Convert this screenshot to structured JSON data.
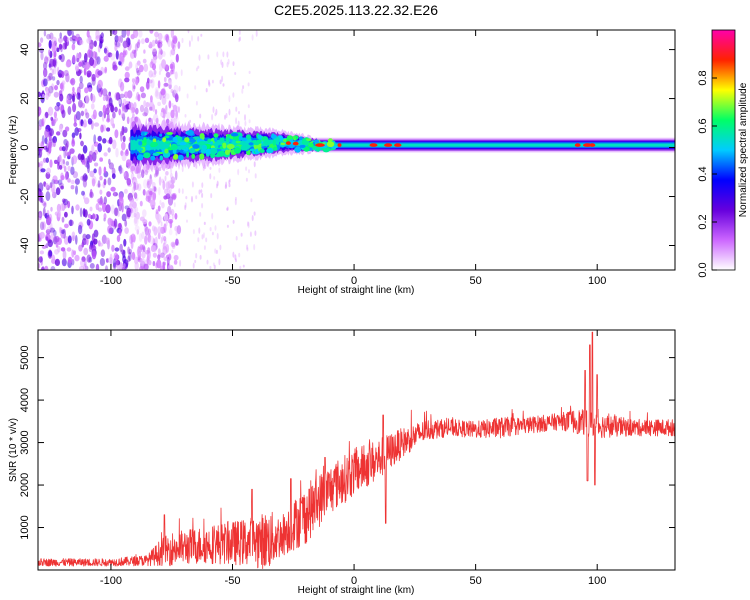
{
  "title": "C2E5.2025.113.22.32.E26",
  "chart_data": [
    {
      "type": "heatmap",
      "xlabel": "Height of straight line (km)",
      "ylabel": "Frequency (Hz)",
      "xlim": [
        -130,
        132
      ],
      "ylim": [
        -50,
        48
      ],
      "xticks": [
        -100,
        -50,
        0,
        50,
        100
      ],
      "yticks": [
        -40,
        -20,
        0,
        20,
        40
      ],
      "colorbar": {
        "label": "Normalized spectral amplitude",
        "range": [
          0,
          1
        ],
        "ticks": [
          "0.0",
          "0.2",
          "0.4",
          "0.6",
          "0.8"
        ],
        "colors": [
          "#ffffff",
          "#cc66ff",
          "#6600dd",
          "#0000ff",
          "#00ccff",
          "#00ff66",
          "#ffff00",
          "#ff2200",
          "#ff00aa"
        ]
      },
      "band": {
        "center_hz": [
          {
            "x": -90,
            "f": 1
          },
          {
            "x": -60,
            "f": 1
          },
          {
            "x": -30,
            "f": 2
          },
          {
            "x": -15,
            "f": 1
          },
          {
            "x": 0,
            "f": 1
          },
          {
            "x": 30,
            "f": 1
          },
          {
            "x": 60,
            "f": 1
          },
          {
            "x": 100,
            "f": 1
          },
          {
            "x": 132,
            "f": 1
          }
        ],
        "halfwidth_hz": [
          {
            "x": -92,
            "w": 10
          },
          {
            "x": -60,
            "w": 8
          },
          {
            "x": -30,
            "w": 5
          },
          {
            "x": -15,
            "w": 3
          },
          {
            "x": 0,
            "w": 3
          },
          {
            "x": 60,
            "w": 3
          },
          {
            "x": 132,
            "w": 3
          }
        ],
        "noise_region_x": [
          -130,
          -80
        ],
        "hotspots_x": [
          -27,
          -24,
          -14,
          -6,
          8,
          14,
          18,
          92,
          96,
          98
        ]
      }
    },
    {
      "type": "line",
      "xlabel": "Height of straight line (km)",
      "ylabel": "SNR (10 * v/v)",
      "xlim": [
        -130,
        132
      ],
      "ylim": [
        0,
        5650
      ],
      "xticks": [
        -100,
        -50,
        0,
        50,
        100
      ],
      "yticks": [
        1000,
        2000,
        3000,
        4000,
        5000
      ],
      "color": "#ee3333",
      "series": [
        {
          "envelope": [
            {
              "x": -130,
              "mean": 180,
              "amp": 90
            },
            {
              "x": -100,
              "mean": 180,
              "amp": 90
            },
            {
              "x": -85,
              "mean": 230,
              "amp": 130
            },
            {
              "x": -80,
              "mean": 400,
              "amp": 300
            },
            {
              "x": -75,
              "mean": 500,
              "amp": 400
            },
            {
              "x": -60,
              "mean": 600,
              "amp": 450
            },
            {
              "x": -45,
              "mean": 650,
              "amp": 550
            },
            {
              "x": -35,
              "mean": 700,
              "amp": 700
            },
            {
              "x": -30,
              "mean": 800,
              "amp": 500
            },
            {
              "x": -20,
              "mean": 1300,
              "amp": 700
            },
            {
              "x": -10,
              "mean": 1900,
              "amp": 600
            },
            {
              "x": 0,
              "mean": 2300,
              "amp": 550
            },
            {
              "x": 10,
              "mean": 2600,
              "amp": 500
            },
            {
              "x": 20,
              "mean": 3000,
              "amp": 350
            },
            {
              "x": 30,
              "mean": 3300,
              "amp": 250
            },
            {
              "x": 40,
              "mean": 3350,
              "amp": 200
            },
            {
              "x": 50,
              "mean": 3300,
              "amp": 200
            },
            {
              "x": 60,
              "mean": 3350,
              "amp": 250
            },
            {
              "x": 70,
              "mean": 3400,
              "amp": 200
            },
            {
              "x": 85,
              "mean": 3500,
              "amp": 200
            },
            {
              "x": 92,
              "mean": 3500,
              "amp": 300
            },
            {
              "x": 100,
              "mean": 3400,
              "amp": 300
            },
            {
              "x": 115,
              "mean": 3350,
              "amp": 200
            },
            {
              "x": 132,
              "mean": 3350,
              "amp": 200
            }
          ],
          "peaks": [
            {
              "x": -78,
              "y": 1300
            },
            {
              "x": -42,
              "y": 1900
            },
            {
              "x": -26,
              "y": 2150
            },
            {
              "x": -12,
              "y": 2650
            },
            {
              "x": 12,
              "y": 3650
            },
            {
              "x": 13,
              "y": 1100
            },
            {
              "x": 95,
              "y": 4700
            },
            {
              "x": 96,
              "y": 2100
            },
            {
              "x": 97,
              "y": 5300
            },
            {
              "x": 98,
              "y": 5600
            },
            {
              "x": 99,
              "y": 2000
            },
            {
              "x": 100,
              "y": 4600
            }
          ]
        }
      ]
    }
  ]
}
